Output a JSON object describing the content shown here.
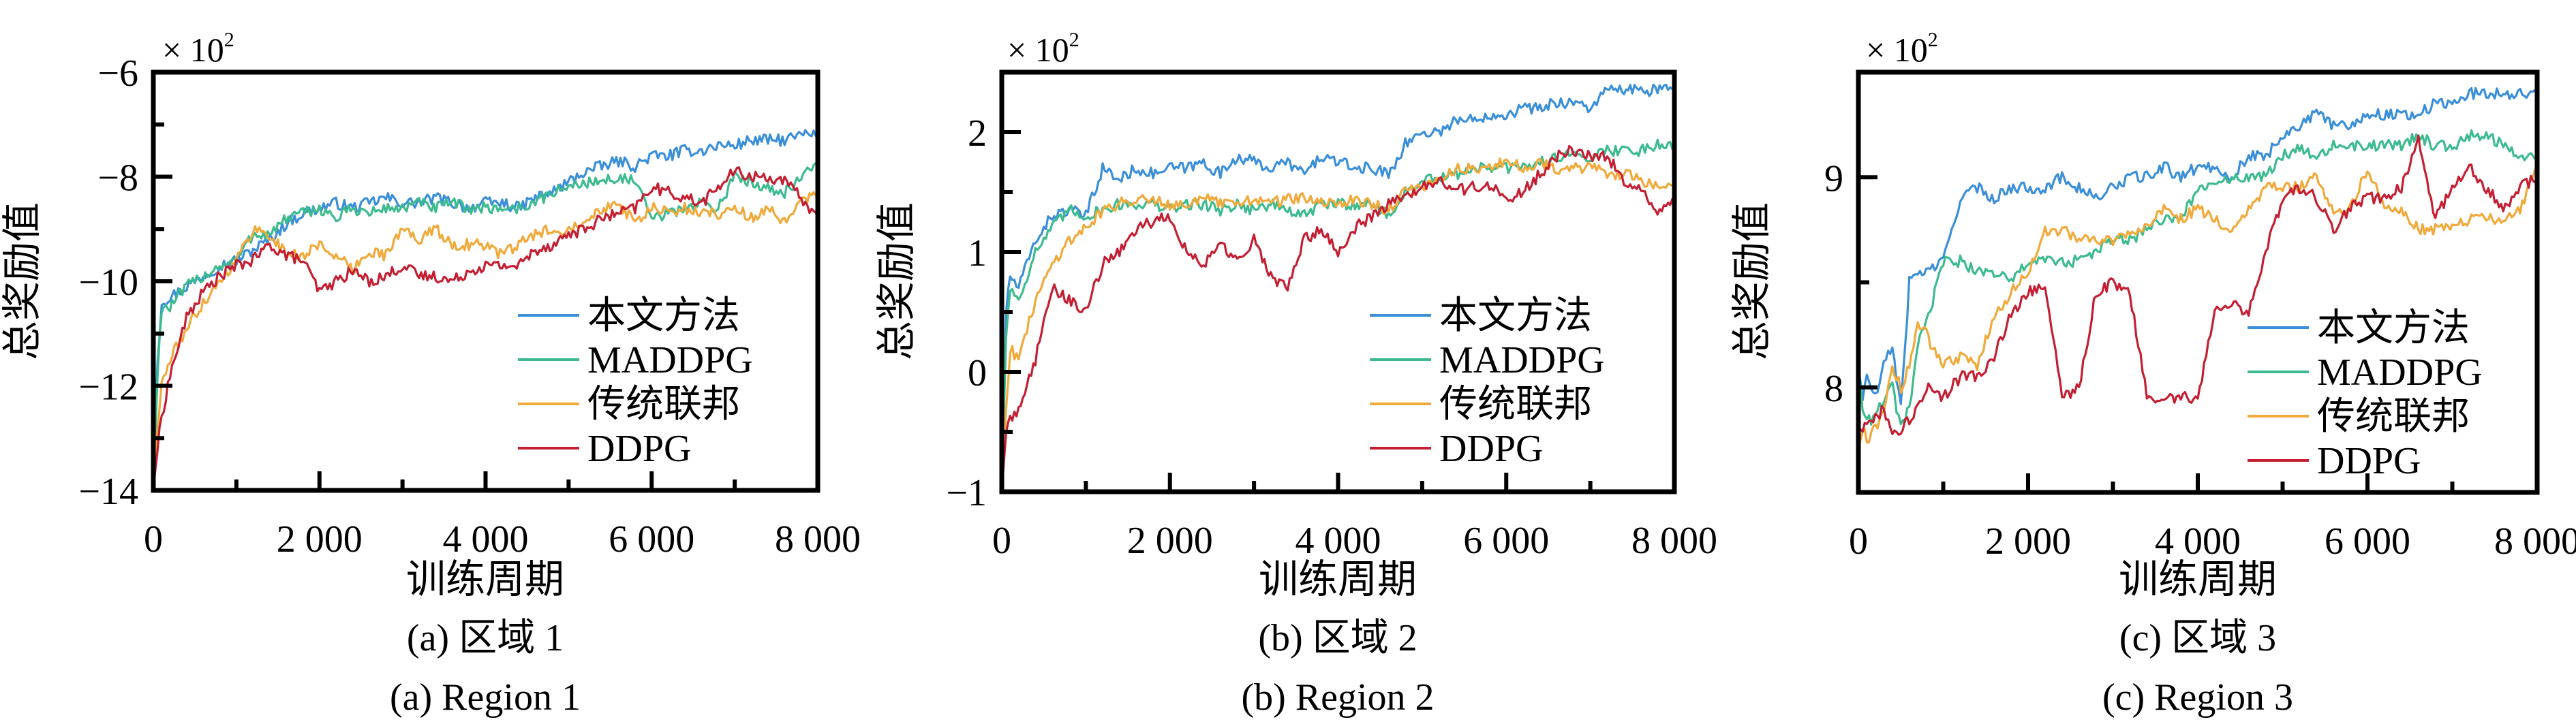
{
  "figure": {
    "xlabel": "训练周期",
    "ylabel": "总奖励值",
    "y_multiplier": "× 10",
    "y_multiplier_exp": "2",
    "legend": [
      "本文方法",
      "MADDPG",
      "传统联邦",
      "DDPG"
    ],
    "colors": {
      "本文方法": "#3b8fd9",
      "MADDPG": "#3dbb8e",
      "传统联邦": "#f0a93a",
      "DDPG": "#c41e32"
    }
  },
  "chart_data": [
    {
      "type": "line",
      "caption_cn": "(a) 区域 1",
      "caption_en": "(a) Region 1",
      "xlabel": "训练周期",
      "ylabel": "总奖励值",
      "y_unit_note": "× 10^2",
      "xlim": [
        0,
        8000
      ],
      "ylim": [
        -14,
        -6
      ],
      "xticks": [
        0,
        2000,
        4000,
        6000,
        8000
      ],
      "xtick_labels": [
        "0",
        "2 000",
        "4 000",
        "6 000",
        "8 000"
      ],
      "yticks": [
        -14,
        -12,
        -10,
        -8,
        -6
      ],
      "ytick_labels": [
        "−14",
        "−12",
        "−10",
        "−8",
        "−6"
      ],
      "legend_position": "lower-right",
      "x": [
        0,
        50,
        100,
        200,
        400,
        600,
        800,
        1000,
        1200,
        1400,
        1600,
        1800,
        2000,
        2200,
        2400,
        2600,
        2800,
        3000,
        3200,
        3400,
        3600,
        3800,
        4000,
        4200,
        4400,
        4600,
        4800,
        5000,
        5200,
        5400,
        5600,
        5800,
        6000,
        6200,
        6400,
        6600,
        6800,
        7000,
        7200,
        7400,
        7600,
        7800,
        8000
      ],
      "series": [
        {
          "name": "本文方法",
          "values": [
            -14.0,
            -11.5,
            -10.4,
            -10.3,
            -10.1,
            -9.9,
            -9.7,
            -9.6,
            -9.4,
            -9.2,
            -8.9,
            -8.7,
            -8.6,
            -8.5,
            -8.6,
            -8.5,
            -8.4,
            -8.5,
            -8.5,
            -8.4,
            -8.5,
            -8.6,
            -8.5,
            -8.5,
            -8.6,
            -8.4,
            -8.3,
            -8.1,
            -7.9,
            -7.8,
            -7.7,
            -7.8,
            -7.6,
            -7.6,
            -7.5,
            -7.5,
            -7.4,
            -7.4,
            -7.3,
            -7.3,
            -7.3,
            -7.2,
            -7.2
          ]
        },
        {
          "name": "MADDPG",
          "values": [
            -14.0,
            -11.8,
            -10.5,
            -10.5,
            -10.1,
            -9.9,
            -9.7,
            -9.6,
            -9.1,
            -9.1,
            -8.8,
            -8.7,
            -8.6,
            -8.8,
            -8.6,
            -8.7,
            -8.6,
            -8.6,
            -8.5,
            -8.6,
            -8.5,
            -8.6,
            -8.6,
            -8.6,
            -8.6,
            -8.5,
            -8.3,
            -8.2,
            -8.1,
            -8.1,
            -8.0,
            -8.1,
            -8.8,
            -8.7,
            -8.6,
            -8.5,
            -8.6,
            -8.0,
            -8.1,
            -8.2,
            -8.3,
            -8.0,
            -7.8
          ]
        },
        {
          "name": "传统联邦",
          "values": [
            -14.0,
            -12.8,
            -12.0,
            -11.5,
            -10.9,
            -10.4,
            -10.0,
            -9.6,
            -9.0,
            -9.1,
            -9.5,
            -9.5,
            -9.3,
            -9.5,
            -9.8,
            -9.4,
            -9.5,
            -9.0,
            -9.2,
            -9.0,
            -9.3,
            -9.3,
            -9.3,
            -9.5,
            -9.3,
            -9.1,
            -9.0,
            -9.0,
            -8.8,
            -8.6,
            -8.5,
            -8.9,
            -8.6,
            -8.7,
            -8.6,
            -8.7,
            -8.7,
            -8.6,
            -8.8,
            -8.6,
            -8.9,
            -8.5,
            -8.3
          ]
        },
        {
          "name": "DDPG",
          "values": [
            -14.0,
            -13.2,
            -12.6,
            -11.8,
            -10.7,
            -10.2,
            -9.9,
            -9.7,
            -9.6,
            -9.3,
            -9.5,
            -9.6,
            -10.2,
            -10.0,
            -9.8,
            -10.0,
            -9.9,
            -9.7,
            -9.9,
            -9.9,
            -10.0,
            -9.8,
            -9.7,
            -9.7,
            -9.7,
            -9.4,
            -9.3,
            -9.1,
            -9.0,
            -8.8,
            -8.7,
            -8.6,
            -8.2,
            -8.3,
            -8.4,
            -8.5,
            -8.2,
            -7.9,
            -8.0,
            -8.0,
            -8.1,
            -8.4,
            -8.8
          ]
        }
      ]
    },
    {
      "type": "line",
      "caption_cn": "(b) 区域 2",
      "caption_en": "(b) Region 2",
      "xlabel": "训练周期",
      "ylabel": "总奖励值",
      "y_unit_note": "× 10^2",
      "xlim": [
        0,
        8000
      ],
      "ylim": [
        -1,
        2.5
      ],
      "xticks": [
        0,
        2000,
        4000,
        6000,
        8000
      ],
      "xtick_labels": [
        "0",
        "2 000",
        "4 000",
        "6 000",
        "8 000"
      ],
      "yticks": [
        -1,
        0,
        1,
        2
      ],
      "ytick_labels": [
        "−1",
        "0",
        "1",
        "2"
      ],
      "legend_position": "lower-right",
      "x": [
        0,
        50,
        100,
        200,
        400,
        600,
        800,
        1000,
        1200,
        1400,
        1600,
        1800,
        2000,
        2200,
        2400,
        2600,
        2800,
        3000,
        3200,
        3400,
        3600,
        3800,
        4000,
        4200,
        4400,
        4600,
        4800,
        5000,
        5200,
        5400,
        5600,
        5800,
        6000,
        6200,
        6400,
        6600,
        6800,
        7000,
        7200,
        7400,
        7600,
        7800,
        8000
      ],
      "series": [
        {
          "name": "本文方法",
          "values": [
            -1.0,
            0.5,
            0.8,
            0.7,
            1.1,
            1.3,
            1.35,
            1.3,
            1.7,
            1.6,
            1.7,
            1.65,
            1.7,
            1.7,
            1.75,
            1.65,
            1.8,
            1.75,
            1.7,
            1.75,
            1.65,
            1.8,
            1.75,
            1.7,
            1.7,
            1.65,
            1.9,
            2.0,
            2.0,
            2.1,
            2.1,
            2.15,
            2.15,
            2.2,
            2.2,
            2.25,
            2.25,
            2.2,
            2.35,
            2.35,
            2.35,
            2.35,
            2.35
          ]
        },
        {
          "name": "MADDPG",
          "values": [
            -1.0,
            0.3,
            0.7,
            0.6,
            1.0,
            1.2,
            1.35,
            1.3,
            1.35,
            1.4,
            1.4,
            1.4,
            1.35,
            1.4,
            1.4,
            1.35,
            1.4,
            1.35,
            1.4,
            1.35,
            1.3,
            1.4,
            1.4,
            1.4,
            1.4,
            1.3,
            1.5,
            1.6,
            1.6,
            1.65,
            1.7,
            1.7,
            1.7,
            1.7,
            1.75,
            1.8,
            1.8,
            1.8,
            1.85,
            1.85,
            1.85,
            1.9,
            1.9
          ]
        },
        {
          "name": "传统联邦",
          "values": [
            -1.0,
            -0.3,
            0.2,
            0.1,
            0.6,
            0.9,
            1.1,
            1.2,
            1.35,
            1.4,
            1.45,
            1.45,
            1.4,
            1.4,
            1.45,
            1.4,
            1.4,
            1.45,
            1.4,
            1.45,
            1.45,
            1.4,
            1.4,
            1.45,
            1.4,
            1.35,
            1.5,
            1.55,
            1.6,
            1.7,
            1.7,
            1.7,
            1.75,
            1.7,
            1.75,
            1.7,
            1.7,
            1.7,
            1.65,
            1.65,
            1.6,
            1.55,
            1.55
          ]
        },
        {
          "name": "DDPG",
          "values": [
            -1.0,
            -0.5,
            -0.4,
            -0.3,
            0.1,
            0.7,
            0.6,
            0.5,
            0.9,
            1.0,
            1.2,
            1.25,
            1.3,
            1.0,
            0.9,
            1.05,
            0.95,
            1.1,
            0.8,
            0.7,
            1.1,
            1.2,
            1.0,
            1.2,
            1.3,
            1.4,
            1.45,
            1.55,
            1.6,
            1.5,
            1.55,
            1.55,
            1.45,
            1.5,
            1.65,
            1.8,
            1.85,
            1.8,
            1.8,
            1.6,
            1.5,
            1.35,
            1.4
          ]
        }
      ]
    },
    {
      "type": "line",
      "caption_cn": "(c) 区域 3",
      "caption_en": "(c) Region 3",
      "xlabel": "训练周期",
      "ylabel": "总奖励值",
      "y_unit_note": "× 10^2",
      "xlim": [
        0,
        8000
      ],
      "ylim": [
        7.5,
        9.5
      ],
      "xticks": [
        0,
        2000,
        4000,
        6000,
        8000
      ],
      "xtick_labels": [
        "0",
        "2 000",
        "4 000",
        "6 000",
        "8 000"
      ],
      "yticks": [
        8,
        9
      ],
      "ytick_labels": [
        "8",
        "9"
      ],
      "legend_position": "lower-right",
      "x": [
        0,
        50,
        100,
        200,
        300,
        400,
        500,
        600,
        700,
        800,
        1000,
        1200,
        1400,
        1600,
        1800,
        2000,
        2200,
        2400,
        2600,
        2800,
        3000,
        3200,
        3400,
        3600,
        3800,
        4000,
        4200,
        4400,
        4600,
        4800,
        5000,
        5200,
        5400,
        5600,
        5800,
        6000,
        6200,
        6400,
        6600,
        6800,
        7000,
        7200,
        7400,
        7600,
        7800,
        8000
      ],
      "series": [
        {
          "name": "本文方法",
          "values": [
            8.1,
            7.95,
            8.05,
            7.95,
            8.1,
            8.2,
            7.9,
            8.5,
            8.55,
            8.55,
            8.6,
            8.9,
            8.95,
            8.9,
            8.95,
            8.95,
            8.95,
            9.0,
            8.95,
            8.9,
            8.95,
            9.0,
            9.0,
            9.05,
            9.0,
            9.05,
            9.05,
            9.0,
            9.1,
            9.1,
            9.2,
            9.25,
            9.3,
            9.25,
            9.25,
            9.3,
            9.3,
            9.3,
            9.3,
            9.35,
            9.35,
            9.4,
            9.4,
            9.4,
            9.4,
            9.4
          ]
        },
        {
          "name": "MADDPG",
          "values": [
            8.1,
            7.9,
            7.85,
            7.85,
            7.95,
            8.0,
            7.8,
            7.9,
            8.2,
            8.3,
            8.6,
            8.6,
            8.55,
            8.55,
            8.5,
            8.6,
            8.6,
            8.6,
            8.6,
            8.65,
            8.7,
            8.7,
            8.75,
            8.8,
            8.8,
            8.95,
            8.95,
            9.0,
            9.0,
            9.0,
            9.1,
            9.15,
            9.1,
            9.15,
            9.15,
            9.15,
            9.15,
            9.15,
            9.2,
            9.15,
            9.15,
            9.2,
            9.2,
            9.15,
            9.1,
            9.1
          ]
        },
        {
          "name": "传统联邦",
          "values": [
            7.7,
            7.8,
            7.75,
            7.8,
            7.9,
            8.1,
            8.0,
            8.1,
            8.3,
            8.25,
            8.1,
            8.15,
            8.1,
            8.35,
            8.45,
            8.55,
            8.75,
            8.75,
            8.7,
            8.7,
            8.7,
            8.75,
            8.75,
            8.85,
            8.8,
            8.85,
            8.8,
            8.75,
            8.85,
            8.95,
            8.95,
            8.95,
            9.0,
            8.85,
            8.85,
            9.05,
            8.85,
            8.85,
            8.75,
            8.75,
            8.75,
            8.8,
            8.8,
            8.8,
            8.85,
            9.05
          ]
        },
        {
          "name": "DDPG",
          "values": [
            7.8,
            7.8,
            7.85,
            7.85,
            7.9,
            7.8,
            7.8,
            7.85,
            7.9,
            8.0,
            7.95,
            8.05,
            8.05,
            8.15,
            8.35,
            8.45,
            8.5,
            7.95,
            8.0,
            8.45,
            8.5,
            8.45,
            7.95,
            7.95,
            7.95,
            7.95,
            8.35,
            8.4,
            8.35,
            8.65,
            8.9,
            8.95,
            8.9,
            8.75,
            8.85,
            8.9,
            8.9,
            8.95,
            9.2,
            8.8,
            8.95,
            9.05,
            8.95,
            8.85,
            8.95,
            9.0
          ]
        }
      ]
    }
  ]
}
